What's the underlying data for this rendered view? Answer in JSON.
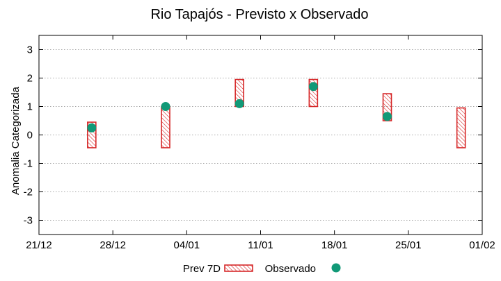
{
  "chart_data": {
    "type": "floating-bar-with-points",
    "title": "Rio Tapajós - Previsto x Observado",
    "xlabel": "",
    "ylabel": "Anomalia Categorizada",
    "xlim_days": [
      0,
      42
    ],
    "ylim": [
      -3.5,
      3.5
    ],
    "x_ticks": [
      {
        "day": 0,
        "label": "21/12"
      },
      {
        "day": 7,
        "label": "28/12"
      },
      {
        "day": 14,
        "label": "04/01"
      },
      {
        "day": 21,
        "label": "11/01"
      },
      {
        "day": 28,
        "label": "18/01"
      },
      {
        "day": 35,
        "label": "25/01"
      },
      {
        "day": 42,
        "label": "01/02"
      }
    ],
    "y_ticks": [
      {
        "value": 3,
        "label": "3"
      },
      {
        "value": 2,
        "label": "2"
      },
      {
        "value": 1,
        "label": "1"
      },
      {
        "value": 0,
        "label": "0"
      },
      {
        "value": -1,
        "label": "-1"
      },
      {
        "value": -2,
        "label": "-2"
      },
      {
        "value": -3,
        "label": "-3"
      }
    ],
    "grid": true,
    "series": [
      {
        "name": "Prev 7D",
        "kind": "range-bar",
        "color": "#d62728",
        "hatch": true,
        "points": [
          {
            "day": 5,
            "low": -0.45,
            "high": 0.45
          },
          {
            "day": 12,
            "low": -0.45,
            "high": 1.0
          },
          {
            "day": 19,
            "low": 1.0,
            "high": 1.95
          },
          {
            "day": 26,
            "low": 1.0,
            "high": 1.95
          },
          {
            "day": 33,
            "low": 0.5,
            "high": 1.45
          },
          {
            "day": 40,
            "low": -0.45,
            "high": 0.95
          }
        ]
      },
      {
        "name": "Observado",
        "kind": "point",
        "color": "#119977",
        "points": [
          {
            "day": 5,
            "value": 0.25
          },
          {
            "day": 12,
            "value": 1.0
          },
          {
            "day": 19,
            "value": 1.1
          },
          {
            "day": 26,
            "value": 1.7
          },
          {
            "day": 33,
            "value": 0.65
          }
        ]
      }
    ],
    "legend_position": "bottom-center"
  }
}
